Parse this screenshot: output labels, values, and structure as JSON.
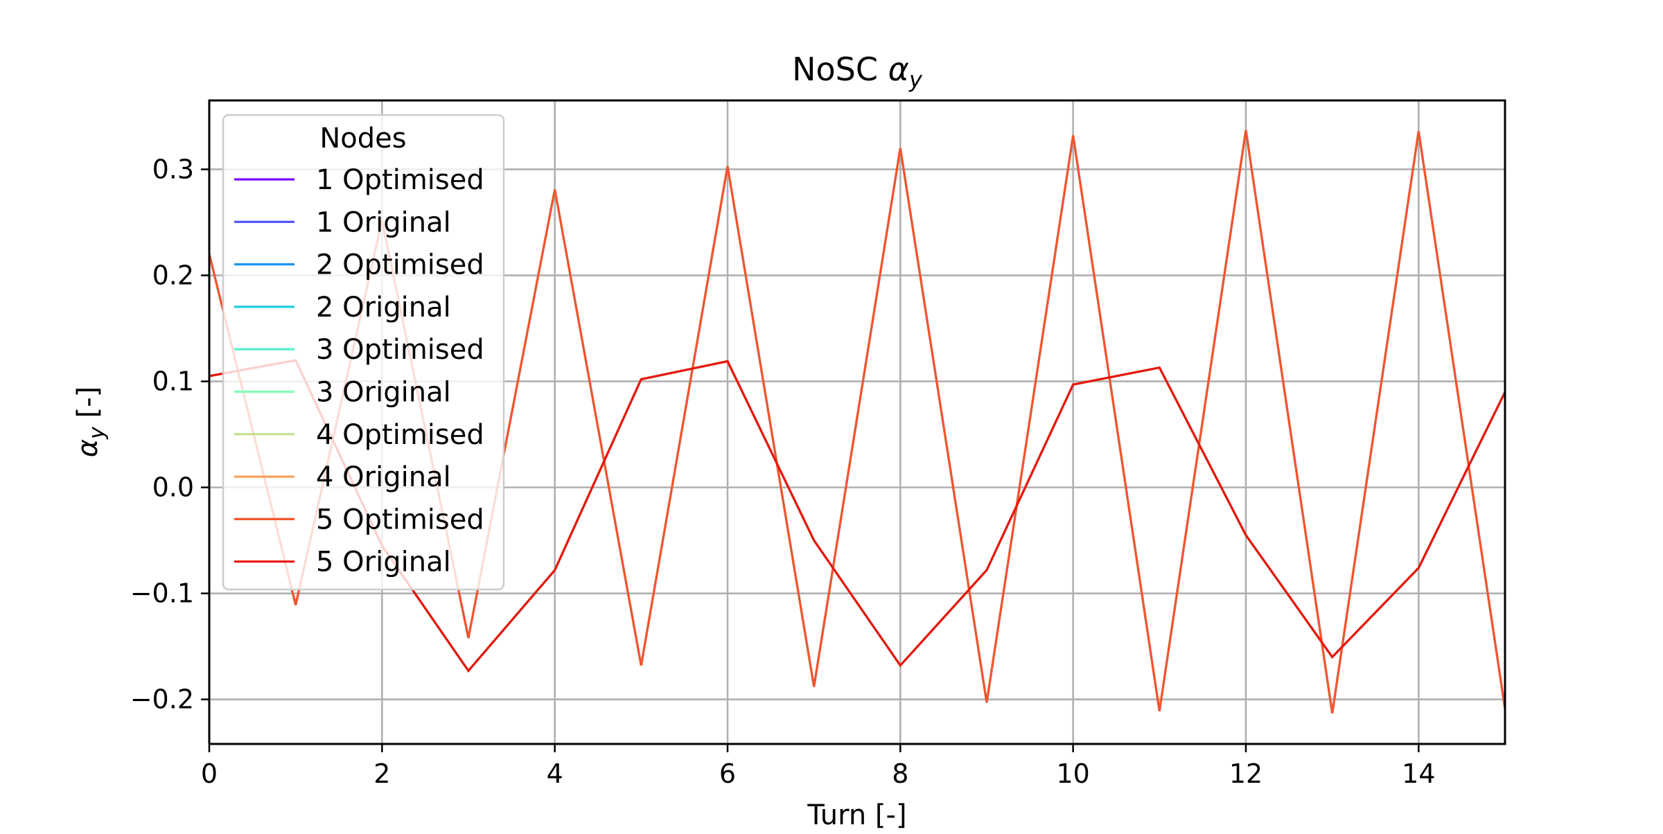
{
  "chart_data": {
    "type": "line",
    "title_text": "NoSC ",
    "title_symbol": "α",
    "title_sub": "y",
    "xlabel": "Turn [-]",
    "ylabel_symbol": "α",
    "ylabel_sub": "y",
    "ylabel_unit": " [-]",
    "xlim": [
      0,
      15
    ],
    "ylim": [
      -0.242,
      0.365
    ],
    "xticks": [
      0,
      2,
      4,
      6,
      8,
      10,
      12,
      14
    ],
    "xtick_labels": [
      "0",
      "2",
      "4",
      "6",
      "8",
      "10",
      "12",
      "14"
    ],
    "yticks": [
      -0.2,
      -0.1,
      0.0,
      0.1,
      0.2,
      0.3
    ],
    "ytick_labels": [
      "−0.2",
      "−0.1",
      "0.0",
      "0.1",
      "0.2",
      "0.3"
    ],
    "grid": true,
    "legend": {
      "title": "Nodes",
      "position": "top-left"
    },
    "x": [
      0,
      1,
      2,
      3,
      4,
      5,
      6,
      7,
      8,
      9,
      10,
      11,
      12,
      13,
      14,
      15
    ],
    "series": [
      {
        "name": "1 Optimised",
        "color": "#7f00ff",
        "values": [
          0.22,
          -0.111,
          0.252,
          -0.142,
          0.281,
          -0.168,
          0.303,
          -0.188,
          0.32,
          -0.203,
          0.332,
          -0.211,
          0.337,
          -0.213,
          0.336,
          -0.209
        ]
      },
      {
        "name": "1 Original",
        "color": "#4c50fc",
        "values": [
          0.105,
          0.12,
          -0.055,
          -0.173,
          -0.078,
          0.102,
          0.119,
          -0.05,
          -0.168,
          -0.078,
          0.097,
          0.113,
          -0.045,
          -0.16,
          -0.076,
          0.09
        ]
      },
      {
        "name": "2 Optimised",
        "color": "#1996f3",
        "values": [
          0.22,
          -0.111,
          0.252,
          -0.142,
          0.281,
          -0.168,
          0.303,
          -0.188,
          0.32,
          -0.203,
          0.332,
          -0.211,
          0.337,
          -0.213,
          0.336,
          -0.209
        ]
      },
      {
        "name": "2 Original",
        "color": "#1ccfe1",
        "values": [
          0.105,
          0.12,
          -0.055,
          -0.173,
          -0.078,
          0.102,
          0.119,
          -0.05,
          -0.168,
          -0.078,
          0.097,
          0.113,
          -0.045,
          -0.16,
          -0.076,
          0.09
        ]
      },
      {
        "name": "3 Optimised",
        "color": "#4df3ce",
        "values": [
          0.22,
          -0.111,
          0.252,
          -0.142,
          0.281,
          -0.168,
          0.303,
          -0.188,
          0.32,
          -0.203,
          0.332,
          -0.211,
          0.337,
          -0.213,
          0.336,
          -0.209
        ]
      },
      {
        "name": "3 Original",
        "color": "#80feb3",
        "values": [
          0.105,
          0.12,
          -0.055,
          -0.173,
          -0.078,
          0.102,
          0.119,
          -0.05,
          -0.168,
          -0.078,
          0.097,
          0.113,
          -0.045,
          -0.16,
          -0.076,
          0.09
        ]
      },
      {
        "name": "4 Optimised",
        "color": "#c3df89",
        "values": [
          0.22,
          -0.111,
          0.252,
          -0.142,
          0.281,
          -0.168,
          0.303,
          -0.188,
          0.32,
          -0.203,
          0.332,
          -0.211,
          0.337,
          -0.213,
          0.336,
          -0.209
        ]
      },
      {
        "name": "4 Original",
        "color": "#f9a05c",
        "values": [
          0.105,
          0.12,
          -0.055,
          -0.173,
          -0.078,
          0.102,
          0.119,
          -0.05,
          -0.168,
          -0.078,
          0.097,
          0.113,
          -0.045,
          -0.16,
          -0.076,
          0.09
        ]
      },
      {
        "name": "5 Optimised",
        "color": "#f5542e",
        "values": [
          0.22,
          -0.111,
          0.252,
          -0.142,
          0.281,
          -0.168,
          0.303,
          -0.188,
          0.32,
          -0.203,
          0.332,
          -0.211,
          0.337,
          -0.213,
          0.336,
          -0.209
        ]
      },
      {
        "name": "5 Original",
        "color": "#e8170e",
        "values": [
          0.105,
          0.12,
          -0.055,
          -0.173,
          -0.078,
          0.102,
          0.119,
          -0.05,
          -0.168,
          -0.078,
          0.097,
          0.113,
          -0.045,
          -0.16,
          -0.076,
          0.09
        ]
      }
    ]
  }
}
